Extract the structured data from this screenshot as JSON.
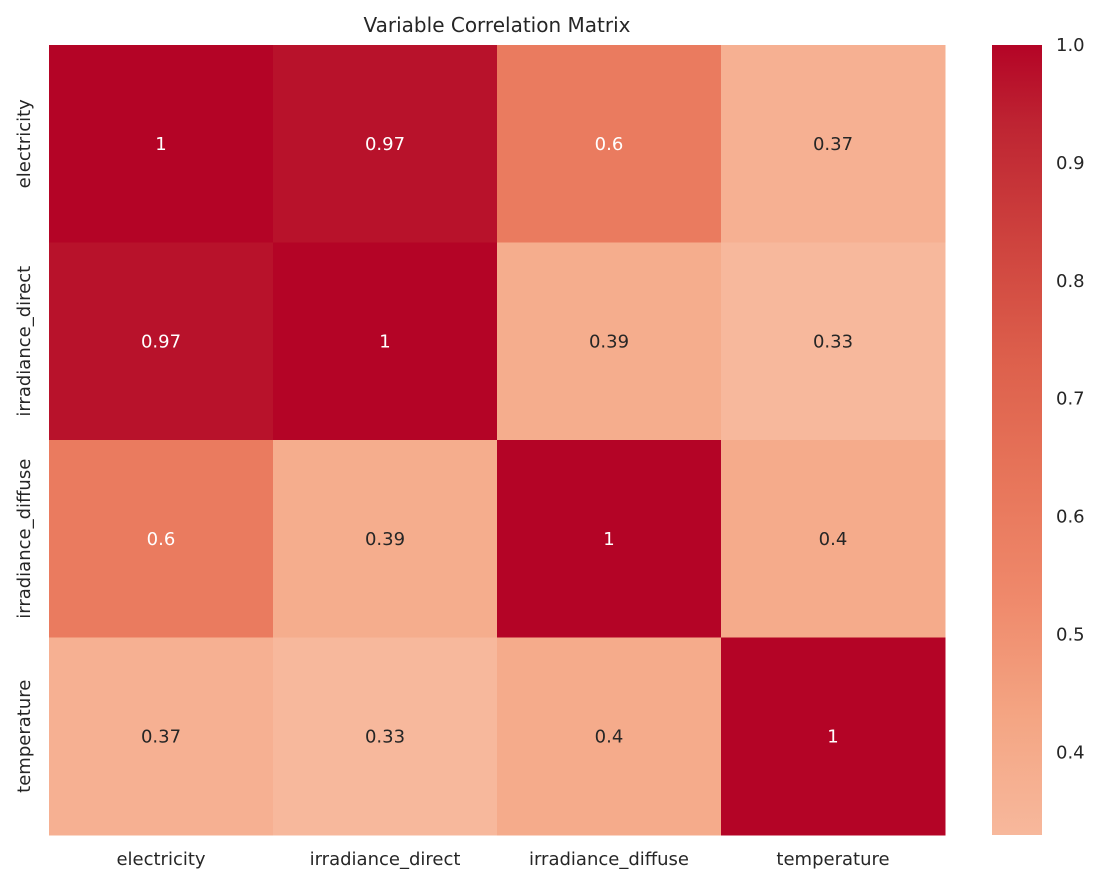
{
  "chart_data": {
    "type": "heatmap",
    "title": "Variable Correlation Matrix",
    "xlabel": "",
    "ylabel": "",
    "x_categories": [
      "electricity",
      "irradiance_direct",
      "irradiance_diffuse",
      "temperature"
    ],
    "y_categories": [
      "electricity",
      "irradiance_direct",
      "irradiance_diffuse",
      "temperature"
    ],
    "values": [
      [
        1.0,
        0.97,
        0.6,
        0.37
      ],
      [
        0.97,
        1.0,
        0.39,
        0.33
      ],
      [
        0.6,
        0.39,
        1.0,
        0.4
      ],
      [
        0.37,
        0.33,
        0.4,
        1.0
      ]
    ],
    "annotations": [
      [
        "1",
        "0.97",
        "0.6",
        "0.37"
      ],
      [
        "0.97",
        "1",
        "0.39",
        "0.33"
      ],
      [
        "0.6",
        "0.39",
        "1",
        "0.4"
      ],
      [
        "0.37",
        "0.33",
        "0.4",
        "1"
      ]
    ],
    "colorbar": {
      "ticks": [
        "0.4",
        "0.5",
        "0.6",
        "0.7",
        "0.8",
        "0.9",
        "1.0"
      ],
      "vmin": 0.33,
      "vmax": 1.0,
      "colormap": "coolwarm (upper half)"
    },
    "colors": {
      "low": "#f7b89c",
      "high": "#b40426",
      "text_dark": "#262626",
      "text_light": "#ffffff"
    },
    "grid": false
  }
}
